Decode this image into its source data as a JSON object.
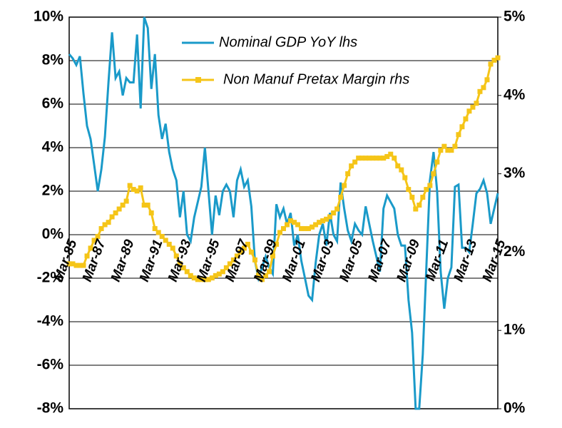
{
  "chart_data": {
    "type": "line",
    "categories": [
      "Mar-85",
      null,
      null,
      null,
      null,
      null,
      null,
      null,
      "Mar-87",
      null,
      null,
      null,
      null,
      null,
      null,
      null,
      "Mar-89",
      null,
      null,
      null,
      null,
      null,
      null,
      null,
      "Mar-91",
      null,
      null,
      null,
      null,
      null,
      null,
      null,
      "Mar-93",
      null,
      null,
      null,
      null,
      null,
      null,
      null,
      "Mar-95",
      null,
      null,
      null,
      null,
      null,
      null,
      null,
      "Mar-97",
      null,
      null,
      null,
      null,
      null,
      null,
      null,
      "Mar-99",
      null,
      null,
      null,
      null,
      null,
      null,
      null,
      "Mar-01",
      null,
      null,
      null,
      null,
      null,
      null,
      null,
      "Mar-03",
      null,
      null,
      null,
      null,
      null,
      null,
      null,
      "Mar-05",
      null,
      null,
      null,
      null,
      null,
      null,
      null,
      "Mar-07",
      null,
      null,
      null,
      null,
      null,
      null,
      null,
      "Mar-09",
      null,
      null,
      null,
      null,
      null,
      null,
      null,
      "Mar-11",
      null,
      null,
      null,
      null,
      null,
      null,
      null,
      "Mar-13",
      null,
      null,
      null,
      null,
      null,
      null,
      null,
      "Mar-15"
    ],
    "series": [
      {
        "name": "Nominal GDP YoY lhs",
        "color": "#1a9ac9",
        "axis": "y",
        "marker": "none",
        "values": [
          8.3,
          8.1,
          7.8,
          8.2,
          6.5,
          5,
          4.4,
          3.2,
          2,
          3,
          4.5,
          7,
          9.3,
          7.2,
          7.5,
          6.4,
          7.2,
          7,
          7,
          9.2,
          5.8,
          10,
          9.5,
          6.7,
          8.3,
          5.5,
          4.4,
          5.1,
          3.8,
          3,
          2.5,
          0.8,
          2,
          0,
          -0.3,
          0.8,
          1.5,
          2.2,
          4,
          2,
          0,
          1.8,
          0.9,
          2,
          2.3,
          2,
          0.8,
          2.5,
          3,
          2.2,
          2.5,
          1.3,
          -1.2,
          -2,
          -1.5,
          -1,
          -1.5,
          -1.8,
          1.4,
          0.8,
          1.2,
          0.5,
          1,
          -0.5,
          0,
          -1.2,
          -2,
          -2.8,
          -3,
          -1.3,
          0,
          0.5,
          -0.5,
          1,
          0,
          -0.3,
          2.4,
          1.2,
          0.2,
          -0.3,
          0.5,
          0.2,
          0,
          1.3,
          0.5,
          -0.3,
          -1,
          -1.7,
          1.2,
          1.8,
          1.5,
          1.2,
          0,
          -0.5,
          -0.5,
          -3,
          -4.5,
          -8,
          -8,
          -5.5,
          -1.5,
          2.5,
          3.8,
          2,
          -1.7,
          -3.4,
          -2,
          -1.5,
          2.2,
          2.3,
          -0.6,
          -0.6,
          -0.8,
          0.5,
          1.9,
          2.1,
          2.5,
          1.9,
          0.5,
          1.2,
          1.9
        ]
      },
      {
        "name": "Non Manuf Pretax Margin rhs",
        "color": "#f5c518",
        "axis": "y2",
        "marker": "square",
        "values": [
          1.85,
          1.85,
          1.83,
          1.83,
          1.83,
          1.95,
          2.05,
          2.15,
          2.2,
          2.3,
          2.35,
          2.38,
          2.45,
          2.5,
          2.55,
          2.6,
          2.65,
          2.85,
          2.8,
          2.78,
          2.82,
          2.6,
          2.6,
          2.5,
          2.3,
          2.25,
          2.2,
          2.15,
          2.1,
          2.05,
          1.95,
          1.85,
          1.8,
          1.75,
          1.7,
          1.67,
          1.65,
          1.65,
          1.65,
          1.65,
          1.67,
          1.7,
          1.72,
          1.75,
          1.8,
          1.85,
          1.9,
          1.95,
          2,
          2.05,
          2.1,
          2,
          1.9,
          1.7,
          1.65,
          1.7,
          1.75,
          1.95,
          2.1,
          2.25,
          2.3,
          2.35,
          2.4,
          2.38,
          2.35,
          2.3,
          2.3,
          2.3,
          2.32,
          2.35,
          2.38,
          2.4,
          2.42,
          2.45,
          2.5,
          2.55,
          2.7,
          2.85,
          3,
          3.1,
          3.15,
          3.2,
          3.2,
          3.2,
          3.2,
          3.2,
          3.2,
          3.2,
          3.2,
          3.22,
          3.25,
          3.2,
          3.1,
          3.05,
          2.95,
          2.8,
          2.7,
          2.55,
          2.6,
          2.7,
          2.8,
          2.85,
          3,
          3.15,
          3.3,
          3.35,
          3.3,
          3.3,
          3.35,
          3.5,
          3.6,
          3.7,
          3.8,
          3.85,
          3.9,
          4.05,
          4.1,
          4.2,
          4.4,
          4.45,
          4.48
        ]
      }
    ],
    "ylim": [
      -8,
      10
    ],
    "yticks": [
      {
        "value": -8,
        "label": "-8%"
      },
      {
        "value": -6,
        "label": "-6%"
      },
      {
        "value": -4,
        "label": "-4%"
      },
      {
        "value": -2,
        "label": "-2%"
      },
      {
        "value": 0,
        "label": "0%"
      },
      {
        "value": 2,
        "label": "2%"
      },
      {
        "value": 4,
        "label": "4%"
      },
      {
        "value": 6,
        "label": "6%"
      },
      {
        "value": 8,
        "label": "8%"
      },
      {
        "value": 10,
        "label": "10%"
      }
    ],
    "y2lim": [
      0,
      5
    ],
    "y2ticks": [
      {
        "value": 0,
        "label": "0%"
      },
      {
        "value": 1,
        "label": "1%"
      },
      {
        "value": 2,
        "label": "2%"
      },
      {
        "value": 3,
        "label": "3%"
      },
      {
        "value": 4,
        "label": "4%"
      },
      {
        "value": 5,
        "label": "5%"
      }
    ],
    "grid": true,
    "legend": "top"
  }
}
